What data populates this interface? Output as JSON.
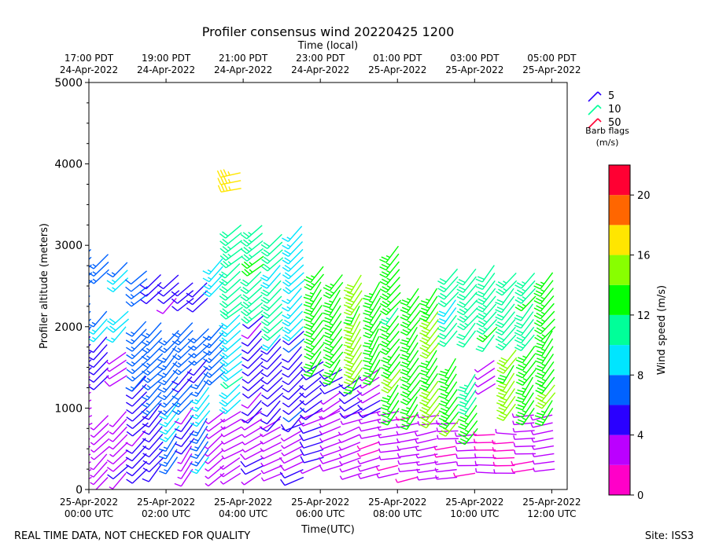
{
  "chart_data": {
    "type": "barbs",
    "title": "Profiler consensus wind 20220425 1200",
    "xlabel": "Time(UTC)",
    "x2label": "Time (local)",
    "ylabel": "Profiler altitude (meters)",
    "ylim": [
      0,
      5000
    ],
    "yticks": [
      "0",
      "1000",
      "2000",
      "3000",
      "4000",
      "5000"
    ],
    "xlim_hours": [
      0,
      12.4
    ],
    "xticks": [
      {
        "h": 0,
        "l1": "25-Apr-2022",
        "l2": "00:00 UTC"
      },
      {
        "h": 2,
        "l1": "25-Apr-2022",
        "l2": "02:00 UTC"
      },
      {
        "h": 4,
        "l1": "25-Apr-2022",
        "l2": "04:00 UTC"
      },
      {
        "h": 6,
        "l1": "25-Apr-2022",
        "l2": "06:00 UTC"
      },
      {
        "h": 8,
        "l1": "25-Apr-2022",
        "l2": "08:00 UTC"
      },
      {
        "h": 10,
        "l1": "25-Apr-2022",
        "l2": "10:00 UTC"
      },
      {
        "h": 12,
        "l1": "25-Apr-2022",
        "l2": "12:00 UTC"
      }
    ],
    "x2ticks": [
      {
        "h": 0,
        "l1": "17:00 PDT",
        "l2": "24-Apr-2022"
      },
      {
        "h": 2,
        "l1": "19:00 PDT",
        "l2": "24-Apr-2022"
      },
      {
        "h": 4,
        "l1": "21:00 PDT",
        "l2": "24-Apr-2022"
      },
      {
        "h": 6,
        "l1": "23:00 PDT",
        "l2": "24-Apr-2022"
      },
      {
        "h": 8,
        "l1": "01:00 PDT",
        "l2": "25-Apr-2022"
      },
      {
        "h": 10,
        "l1": "03:00 PDT",
        "l2": "25-Apr-2022"
      },
      {
        "h": 12,
        "l1": "05:00 PDT",
        "l2": "25-Apr-2022"
      }
    ],
    "legend": {
      "title": "Barb flags",
      "units": "(m/s)",
      "entries": [
        {
          "label": "5",
          "color": "#2a00ff"
        },
        {
          "label": "10",
          "color": "#00ff99"
        },
        {
          "label": "50",
          "color": "#ff0033"
        }
      ]
    },
    "colorbar": {
      "label": "Wind speed (m/s)",
      "ticks": [
        "0",
        "4",
        "8",
        "12",
        "16",
        "20"
      ],
      "range": [
        0,
        22
      ],
      "colors": [
        "#ff00c8",
        "#bb00ff",
        "#2a00ff",
        "#0062ff",
        "#00e5ff",
        "#00ff99",
        "#00ff00",
        "#88ff00",
        "#ffe600",
        "#ff6600",
        "#ff0033"
      ]
    },
    "profiles": [
      {
        "t": 0.05,
        "layers": [
          [
            150,
            1500,
            2.5,
            240
          ],
          [
            1500,
            2000,
            4.5,
            225
          ],
          [
            2000,
            3000,
            6.5,
            225
          ]
        ]
      },
      {
        "t": 0.5,
        "layers": [
          [
            150,
            1000,
            3.0,
            225
          ],
          [
            1400,
            1900,
            5.0,
            225
          ],
          [
            2000,
            2200,
            8.5,
            225
          ],
          [
            2700,
            2950,
            7.0,
            225
          ]
        ]
      },
      {
        "t": 1.0,
        "layers": [
          [
            200,
            1050,
            3.5,
            225
          ],
          [
            1400,
            1700,
            4.0,
            240
          ],
          [
            2000,
            2200,
            9.0,
            225
          ],
          [
            2600,
            2850,
            8.0,
            225
          ]
        ]
      },
      {
        "t": 1.5,
        "layers": [
          [
            250,
            1400,
            4.5,
            225
          ],
          [
            1400,
            2150,
            7.0,
            225
          ],
          [
            2400,
            2750,
            6.0,
            230
          ]
        ]
      },
      {
        "t": 1.9,
        "layers": [
          [
            300,
            1100,
            5.0,
            220
          ],
          [
            1100,
            2100,
            7.0,
            225
          ],
          [
            2450,
            2700,
            5.0,
            230
          ]
        ]
      },
      {
        "t": 2.3,
        "layers": [
          [
            400,
            1100,
            8.0,
            215
          ],
          [
            1100,
            2000,
            7.0,
            220
          ],
          [
            2350,
            2650,
            4.5,
            225
          ]
        ]
      },
      {
        "t": 2.7,
        "layers": [
          [
            250,
            1100,
            4.0,
            215
          ],
          [
            1100,
            2050,
            6.5,
            225
          ],
          [
            2350,
            2600,
            4.5,
            230
          ]
        ]
      },
      {
        "t": 3.1,
        "layers": [
          [
            400,
            1500,
            8.0,
            215
          ],
          [
            1500,
            2000,
            6.5,
            225
          ],
          [
            2350,
            2600,
            5.0,
            230
          ]
        ]
      },
      {
        "t": 3.5,
        "layers": [
          [
            200,
            1000,
            3.0,
            230
          ],
          [
            1450,
            2050,
            7.0,
            225
          ],
          [
            2550,
            2850,
            9.0,
            225
          ]
        ]
      },
      {
        "t": 3.95,
        "layers": [
          [
            200,
            1050,
            3.0,
            240
          ],
          [
            1100,
            2300,
            9.5,
            230
          ],
          [
            2300,
            3250,
            11.0,
            230
          ],
          [
            3700,
            3950,
            17.0,
            260
          ]
        ]
      },
      {
        "t": 4.5,
        "layers": [
          [
            200,
            1000,
            3.5,
            240
          ],
          [
            1000,
            2200,
            4.5,
            225
          ],
          [
            2200,
            3250,
            11.5,
            230
          ]
        ]
      },
      {
        "t": 5.0,
        "layers": [
          [
            200,
            900,
            3.0,
            245
          ],
          [
            900,
            1900,
            5.0,
            225
          ],
          [
            1900,
            3200,
            10.5,
            225
          ]
        ]
      },
      {
        "t": 5.55,
        "layers": [
          [
            150,
            900,
            4.0,
            245
          ],
          [
            900,
            2000,
            5.5,
            225
          ],
          [
            2000,
            3300,
            9.0,
            225
          ]
        ]
      },
      {
        "t": 6.05,
        "layers": [
          [
            300,
            1000,
            4.0,
            250
          ],
          [
            1000,
            1600,
            5.0,
            235
          ],
          [
            1600,
            2750,
            13.0,
            215
          ]
        ]
      },
      {
        "t": 6.55,
        "layers": [
          [
            300,
            1000,
            3.5,
            250
          ],
          [
            1000,
            1500,
            4.0,
            240
          ],
          [
            1500,
            2700,
            13.0,
            215
          ]
        ]
      },
      {
        "t": 7.05,
        "layers": [
          [
            200,
            1000,
            3.0,
            250
          ],
          [
            1000,
            1400,
            4.5,
            235
          ],
          [
            1400,
            2650,
            14.5,
            210
          ]
        ]
      },
      {
        "t": 7.55,
        "layers": [
          [
            200,
            1000,
            2.5,
            255
          ],
          [
            1000,
            1500,
            4.0,
            240
          ],
          [
            1500,
            2550,
            13.0,
            210
          ]
        ]
      },
      {
        "t": 8.05,
        "layers": [
          [
            200,
            1000,
            2.5,
            260
          ],
          [
            1000,
            1850,
            13.5,
            215
          ],
          [
            1850,
            3050,
            12.5,
            220
          ]
        ]
      },
      {
        "t": 8.55,
        "layers": [
          [
            150,
            950,
            2.5,
            260
          ],
          [
            950,
            2550,
            13.0,
            215
          ]
        ]
      },
      {
        "t": 9.05,
        "layers": [
          [
            150,
            950,
            3.0,
            260
          ],
          [
            950,
            2500,
            14.0,
            215
          ]
        ]
      },
      {
        "t": 9.55,
        "layers": [
          [
            150,
            850,
            2.5,
            265
          ],
          [
            850,
            1650,
            13.5,
            215
          ],
          [
            1950,
            2750,
            10.5,
            220
          ]
        ]
      },
      {
        "t": 10.05,
        "layers": [
          [
            200,
            750,
            2.5,
            265
          ],
          [
            750,
            1500,
            12.0,
            215
          ],
          [
            1950,
            2800,
            11.0,
            220
          ]
        ]
      },
      {
        "t": 10.55,
        "layers": [
          [
            200,
            700,
            2.0,
            270
          ],
          [
            1300,
            1650,
            3.5,
            240
          ],
          [
            1900,
            2800,
            11.5,
            220
          ]
        ]
      },
      {
        "t": 11.05,
        "layers": [
          [
            200,
            750,
            2.0,
            270
          ],
          [
            1050,
            1800,
            14.5,
            215
          ],
          [
            1900,
            2750,
            11.0,
            220
          ]
        ]
      },
      {
        "t": 11.55,
        "layers": [
          [
            250,
            1000,
            2.5,
            265
          ],
          [
            1000,
            1850,
            13.0,
            215
          ],
          [
            1900,
            2700,
            11.5,
            220
          ]
        ]
      },
      {
        "t": 12.05,
        "layers": [
          [
            250,
            1000,
            3.0,
            260
          ],
          [
            1000,
            2000,
            13.5,
            215
          ],
          [
            2000,
            2750,
            13.0,
            220
          ]
        ]
      }
    ]
  },
  "footer": {
    "left": "REAL TIME DATA, NOT CHECKED FOR QUALITY",
    "right": "Site: ISS3"
  }
}
